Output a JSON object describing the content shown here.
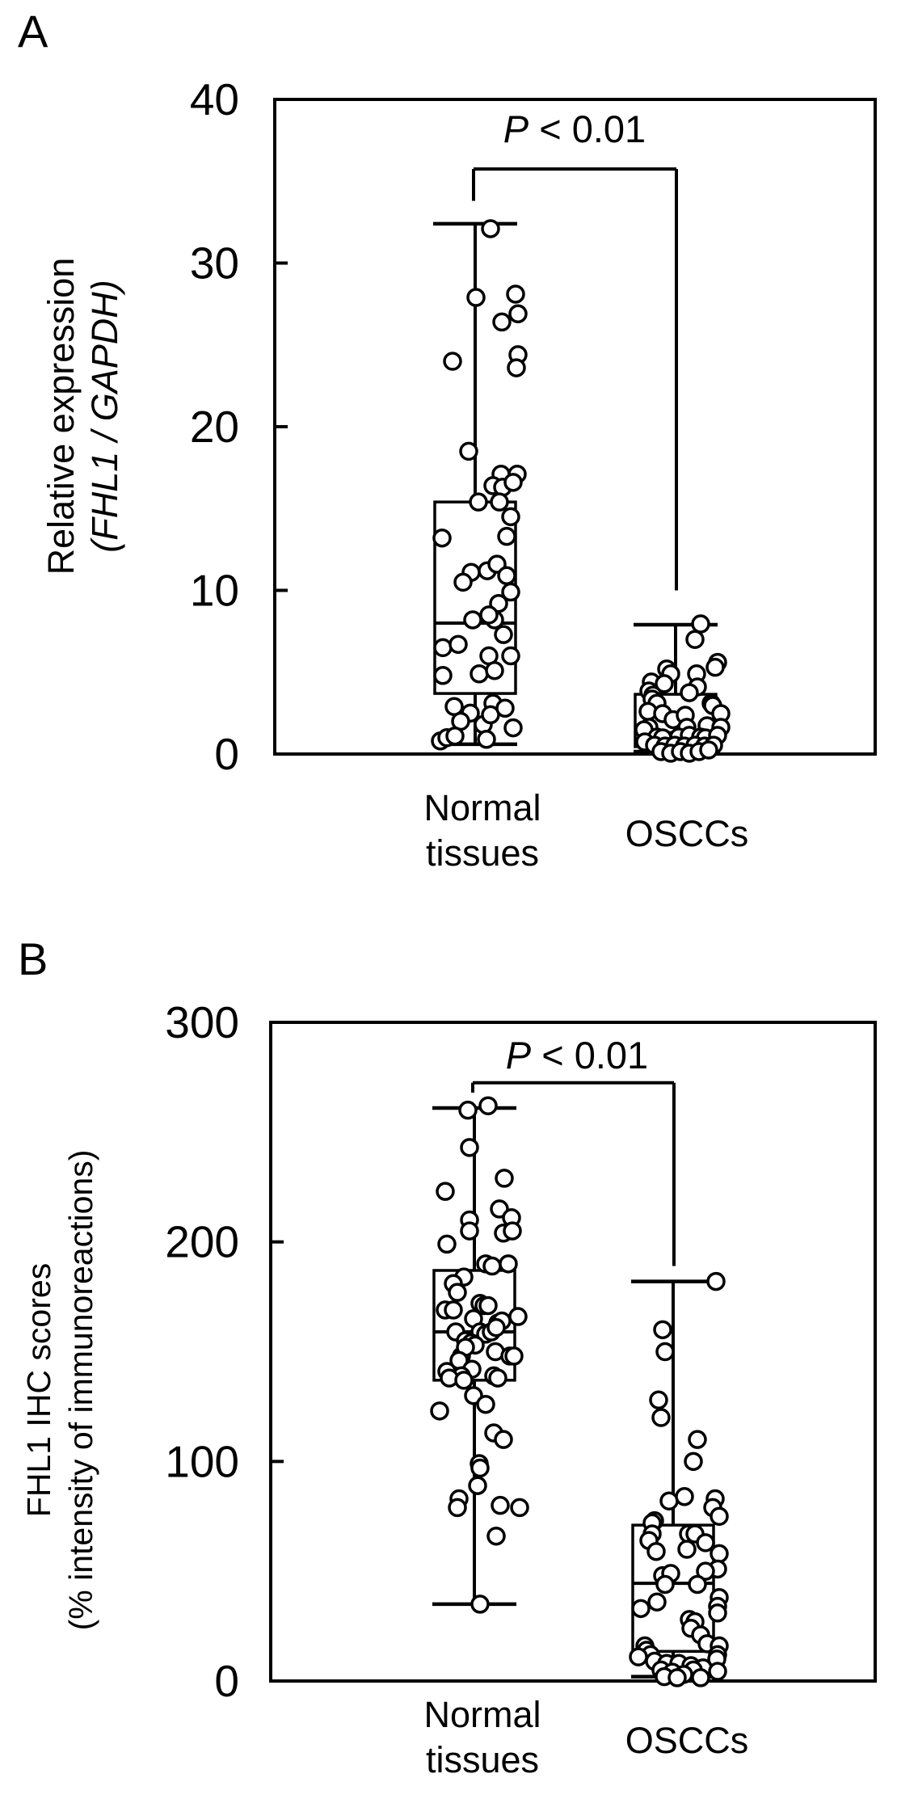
{
  "figure": {
    "panels": [
      {
        "letter": "A",
        "ylabel_line1": "Relative expression",
        "ylabel_line2": "(FHL1 / GAPDH)",
        "p_italic": "P",
        "p_rest": " < 0.01",
        "cat1_line1": "Normal",
        "cat1_line2": "tissues",
        "cat2": "OSCCs"
      },
      {
        "letter": "B",
        "ylabel_line1": "FHL1 IHC scores",
        "ylabel_line2": "(% intensity of immunoreactions)",
        "p_italic": "P",
        "p_rest": " < 0.01",
        "cat1_line1": "Normal",
        "cat1_line2": "tissues",
        "cat2": "OSCCs"
      }
    ]
  },
  "chart_data": [
    {
      "id": "A",
      "type": "boxplot-scatter",
      "title": "",
      "xlabel": "",
      "ylabel": "Relative expression (FHL1 / GAPDH)",
      "ylim": [
        0,
        40
      ],
      "yticks": [
        0,
        10,
        20,
        30,
        40
      ],
      "categories": [
        "Normal tissues",
        "OSCCs"
      ],
      "annotation": "P < 0.01",
      "bracket": {
        "y_value": 35.75,
        "left_drop_value": 33.8,
        "right_drop_value": 10.0
      },
      "groups": [
        {
          "name": "Normal tissues",
          "box": {
            "min": 0.6,
            "q1": 3.7,
            "median": 8.0,
            "q3": 15.4,
            "max": 32.4
          },
          "points": [
            [
              19,
              32.1
            ],
            [
              1,
              27.9
            ],
            [
              50,
              28.1
            ],
            [
              53,
              26.9
            ],
            [
              33,
              26.4
            ],
            [
              53,
              24.4
            ],
            [
              51,
              23.6
            ],
            [
              -28,
              24.0
            ],
            [
              -8,
              18.5
            ],
            [
              32,
              17.1
            ],
            [
              52,
              17.1
            ],
            [
              22,
              16.4
            ],
            [
              34,
              16.3
            ],
            [
              47,
              16.6
            ],
            [
              4,
              15.4
            ],
            [
              30,
              15.4
            ],
            [
              44,
              14.5
            ],
            [
              -41,
              13.2
            ],
            [
              39,
              13.3
            ],
            [
              -5,
              11.1
            ],
            [
              15,
              11.2
            ],
            [
              27,
              11.6
            ],
            [
              -15,
              10.5
            ],
            [
              39,
              10.9
            ],
            [
              44,
              9.9
            ],
            [
              29,
              9.2
            ],
            [
              -3,
              8.2
            ],
            [
              24,
              8.2
            ],
            [
              17,
              8.5
            ],
            [
              35,
              7.3
            ],
            [
              -40,
              6.5
            ],
            [
              -21,
              6.7
            ],
            [
              44,
              6.0
            ],
            [
              17,
              6.0
            ],
            [
              -40,
              4.8
            ],
            [
              5,
              4.9
            ],
            [
              24,
              5.1
            ],
            [
              -26,
              2.9
            ],
            [
              -6,
              2.5
            ],
            [
              -18,
              2.0
            ],
            [
              10,
              1.8
            ],
            [
              47,
              1.6
            ],
            [
              22,
              3.1
            ],
            [
              19,
              2.4
            ],
            [
              37,
              2.8
            ],
            [
              -43,
              0.8
            ],
            [
              -35,
              1.0
            ],
            [
              -25,
              1.1
            ],
            [
              14,
              0.9
            ]
          ]
        },
        {
          "name": "OSCCs",
          "box": {
            "min": 0.15,
            "q1": 0.45,
            "median": 1.3,
            "q3": 3.65,
            "max": 7.9
          },
          "points": [
            [
              31,
              7.95
            ],
            [
              24,
              7.0
            ],
            [
              52,
              5.6
            ],
            [
              49,
              5.3
            ],
            [
              -11,
              5.2
            ],
            [
              -6,
              4.9
            ],
            [
              -30,
              4.4
            ],
            [
              -14,
              4.3
            ],
            [
              26,
              4.9
            ],
            [
              27,
              4.1
            ],
            [
              -33,
              3.85
            ],
            [
              -28,
              3.6
            ],
            [
              17,
              3.75
            ],
            [
              44,
              3.1
            ],
            [
              46,
              2.96
            ],
            [
              -29,
              3.36
            ],
            [
              -23,
              3.1
            ],
            [
              56,
              2.47
            ],
            [
              -34,
              2.6
            ],
            [
              -16,
              2.47
            ],
            [
              -3,
              2.1
            ],
            [
              12,
              2.37
            ],
            [
              -33,
              1.63
            ],
            [
              -39,
              1.48
            ],
            [
              14,
              1.63
            ],
            [
              39,
              1.73
            ],
            [
              56,
              1.63
            ],
            [
              -23,
              1.04
            ],
            [
              -16,
              0.99
            ],
            [
              4,
              1.04
            ],
            [
              17,
              1.14
            ],
            [
              31,
              1.04
            ],
            [
              37,
              0.99
            ],
            [
              52,
              1.14
            ],
            [
              -38,
              0.74
            ],
            [
              -26,
              0.54
            ],
            [
              -13,
              0.49
            ],
            [
              -1,
              0.54
            ],
            [
              11,
              0.49
            ],
            [
              24,
              0.54
            ],
            [
              36,
              0.49
            ],
            [
              47,
              0.54
            ],
            [
              -18,
              0.15
            ],
            [
              -6,
              0.05
            ],
            [
              6,
              0.15
            ],
            [
              17,
              0.05
            ],
            [
              29,
              0.15
            ],
            [
              41,
              0.25
            ]
          ]
        }
      ]
    },
    {
      "id": "B",
      "type": "boxplot-scatter",
      "title": "",
      "xlabel": "",
      "ylabel": "FHL1 IHC scores (% intensity of immunoreactions)",
      "ylim": [
        0,
        300
      ],
      "yticks": [
        0,
        100,
        200,
        300
      ],
      "categories": [
        "Normal tissues",
        "OSCCs"
      ],
      "annotation": "P < 0.01",
      "bracket": {
        "y_value": 272.5,
        "left_drop_value": 268,
        "right_drop_value": 189
      },
      "groups": [
        {
          "name": "Normal tissues",
          "box": {
            "min": 35,
            "q1": 137,
            "median": 159,
            "q3": 187,
            "max": 261
          },
          "points": [
            [
              -8,
              260
            ],
            [
              17,
              262
            ],
            [
              -6,
              243
            ],
            [
              37,
              229
            ],
            [
              -36,
              223
            ],
            [
              31,
              215
            ],
            [
              46,
              211
            ],
            [
              -6,
              210
            ],
            [
              -6,
              205
            ],
            [
              36,
              204
            ],
            [
              47,
              205
            ],
            [
              -34,
              199
            ],
            [
              14,
              190
            ],
            [
              22,
              189
            ],
            [
              42,
              190
            ],
            [
              -13,
              184
            ],
            [
              -26,
              181
            ],
            [
              -21,
              177
            ],
            [
              -36,
              169
            ],
            [
              -26,
              169
            ],
            [
              7,
              172
            ],
            [
              12,
              171
            ],
            [
              17,
              171
            ],
            [
              -1,
              165
            ],
            [
              29,
              163
            ],
            [
              34,
              164
            ],
            [
              54,
              166
            ],
            [
              -23,
              159
            ],
            [
              7,
              159
            ],
            [
              14,
              158
            ],
            [
              21,
              159
            ],
            [
              27,
              161
            ],
            [
              -11,
              155
            ],
            [
              -4,
              154
            ],
            [
              1,
              153
            ],
            [
              -16,
              148
            ],
            [
              -11,
              152
            ],
            [
              -19,
              146
            ],
            [
              26,
              150
            ],
            [
              44,
              148
            ],
            [
              49,
              148
            ],
            [
              -3,
              142
            ],
            [
              -34,
              141
            ],
            [
              -16,
              139
            ],
            [
              24,
              139
            ],
            [
              29,
              138
            ],
            [
              -31,
              138
            ],
            [
              -13,
              137
            ],
            [
              -43,
              123
            ],
            [
              -1,
              130
            ],
            [
              14,
              126
            ],
            [
              24,
              113
            ],
            [
              36,
              110
            ],
            [
              6,
              99
            ],
            [
              7,
              97
            ],
            [
              4,
              89
            ],
            [
              -19,
              83
            ],
            [
              -21,
              79
            ],
            [
              32,
              80
            ],
            [
              56,
              79
            ],
            [
              27,
              66
            ],
            [
              7,
              35
            ]
          ]
        },
        {
          "name": "OSCCs",
          "box": {
            "min": 2,
            "q1": 13.5,
            "median": 44.5,
            "q3": 71,
            "max": 182
          },
          "points": [
            [
              53,
              182
            ],
            [
              -13,
              160
            ],
            [
              -10,
              150
            ],
            [
              -18,
              128
            ],
            [
              -15,
              120
            ],
            [
              30,
              110
            ],
            [
              25,
              100
            ],
            [
              -23,
              73
            ],
            [
              -5,
              82
            ],
            [
              14,
              84
            ],
            [
              52,
              83
            ],
            [
              49,
              79
            ],
            [
              57,
              75
            ],
            [
              -26,
              72
            ],
            [
              -26,
              67
            ],
            [
              -30,
              64
            ],
            [
              -21,
              59
            ],
            [
              19,
              67
            ],
            [
              27,
              67
            ],
            [
              40,
              63
            ],
            [
              17,
              60
            ],
            [
              57,
              58
            ],
            [
              55,
              51
            ],
            [
              40,
              50
            ],
            [
              -13,
              48
            ],
            [
              -3,
              49
            ],
            [
              -10,
              44
            ],
            [
              30,
              44
            ],
            [
              57,
              38
            ],
            [
              55,
              34
            ],
            [
              55,
              31
            ],
            [
              -40,
              33
            ],
            [
              -20,
              36
            ],
            [
              20,
              28
            ],
            [
              27,
              27
            ],
            [
              22,
              24
            ],
            [
              34,
              21
            ],
            [
              42,
              17
            ],
            [
              57,
              16
            ],
            [
              55,
              12
            ],
            [
              54,
              10
            ],
            [
              -35,
              16
            ],
            [
              -33,
              14
            ],
            [
              -28,
              12
            ],
            [
              -43,
              11
            ],
            [
              -23,
              9
            ],
            [
              -8,
              8
            ],
            [
              7,
              8
            ],
            [
              22,
              7
            ],
            [
              37,
              6
            ],
            [
              25,
              5
            ],
            [
              34,
              1.5
            ],
            [
              55,
              4.4
            ],
            [
              -15,
              5
            ],
            [
              -1,
              4
            ],
            [
              13,
              3
            ],
            [
              -11,
              2
            ],
            [
              5,
              1.5
            ]
          ]
        }
      ]
    }
  ]
}
